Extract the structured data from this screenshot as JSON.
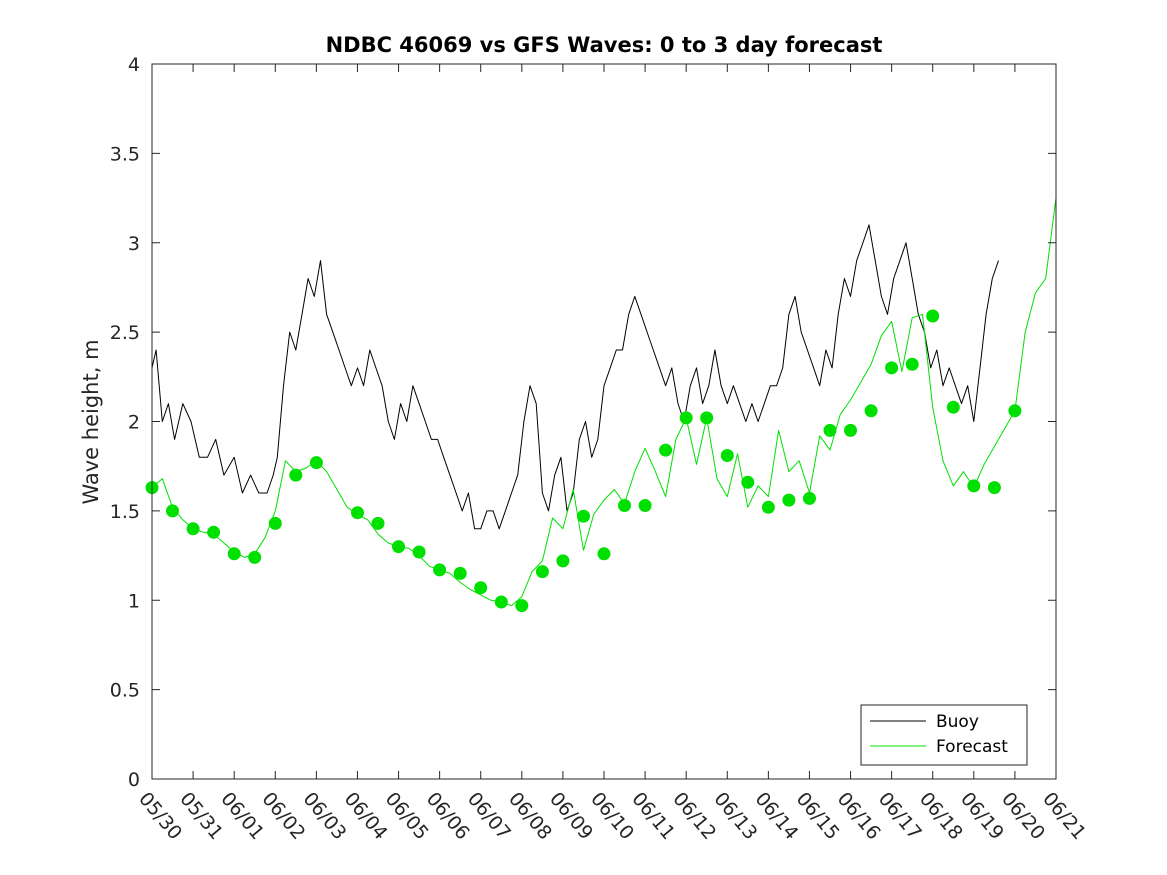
{
  "chart_data": {
    "type": "line",
    "title": "NDBC 46069 vs GFS Waves: 0 to 3 day forecast",
    "xlabel": "",
    "ylabel": "Wave height, m",
    "ylim": [
      0,
      4
    ],
    "yticks": [
      "0",
      "0.5",
      "1",
      "1.5",
      "2",
      "2.5",
      "3",
      "3.5",
      "4"
    ],
    "xlim": [
      0,
      22
    ],
    "xtick_labels": [
      "05/30",
      "05/31",
      "06/01",
      "06/02",
      "06/03",
      "06/04",
      "06/05",
      "06/06",
      "06/07",
      "06/08",
      "06/09",
      "06/10",
      "06/11",
      "06/12",
      "06/13",
      "06/14",
      "06/15",
      "06/16",
      "06/17",
      "06/18",
      "06/19",
      "06/20",
      "06/21"
    ],
    "grid": false,
    "legend_position": "bottom-right",
    "series": [
      {
        "name": "Buoy",
        "color": "#000000",
        "x": [
          0.0,
          0.1,
          0.25,
          0.4,
          0.55,
          0.75,
          0.95,
          1.15,
          1.35,
          1.55,
          1.75,
          2.0,
          2.2,
          2.4,
          2.6,
          2.8,
          2.95,
          3.05,
          3.2,
          3.35,
          3.5,
          3.65,
          3.8,
          3.95,
          4.1,
          4.25,
          4.4,
          4.55,
          4.7,
          4.85,
          5.0,
          5.15,
          5.3,
          5.45,
          5.6,
          5.75,
          5.9,
          6.05,
          6.2,
          6.35,
          6.5,
          6.65,
          6.8,
          6.95,
          7.1,
          7.25,
          7.4,
          7.55,
          7.7,
          7.85,
          8.0,
          8.15,
          8.3,
          8.45,
          8.6,
          8.75,
          8.9,
          9.05,
          9.2,
          9.35,
          9.5,
          9.65,
          9.8,
          9.95,
          10.1,
          10.25,
          10.4,
          10.55,
          10.7,
          10.85,
          11.0,
          11.15,
          11.3,
          11.45,
          11.6,
          11.75,
          11.9,
          12.05,
          12.2,
          12.35,
          12.5,
          12.65,
          12.8,
          12.95,
          13.1,
          13.25,
          13.4,
          13.55,
          13.7,
          13.85,
          14.0,
          14.15,
          14.3,
          14.45,
          14.6,
          14.75,
          14.9,
          15.05,
          15.2,
          15.35,
          15.5,
          15.65,
          15.8,
          15.95,
          16.1,
          16.25,
          16.4,
          16.55,
          16.7,
          16.85,
          17.0,
          17.15,
          17.3,
          17.45,
          17.6,
          17.75,
          17.9,
          18.05,
          18.2,
          18.35,
          18.5,
          18.65,
          18.8,
          18.95,
          19.1,
          19.25,
          19.4,
          19.55,
          19.7,
          19.85,
          20.0,
          20.15,
          20.3,
          20.45,
          20.6
        ],
        "y": [
          2.3,
          2.4,
          2.0,
          2.1,
          1.9,
          2.1,
          2.0,
          1.8,
          1.8,
          1.9,
          1.7,
          1.8,
          1.6,
          1.7,
          1.6,
          1.6,
          1.7,
          1.8,
          2.2,
          2.5,
          2.4,
          2.6,
          2.8,
          2.7,
          2.9,
          2.6,
          2.5,
          2.4,
          2.3,
          2.2,
          2.3,
          2.2,
          2.4,
          2.3,
          2.2,
          2.0,
          1.9,
          2.1,
          2.0,
          2.2,
          2.1,
          2.0,
          1.9,
          1.9,
          1.8,
          1.7,
          1.6,
          1.5,
          1.6,
          1.4,
          1.4,
          1.5,
          1.5,
          1.4,
          1.5,
          1.6,
          1.7,
          2.0,
          2.2,
          2.1,
          1.6,
          1.5,
          1.7,
          1.8,
          1.5,
          1.6,
          1.9,
          2.0,
          1.8,
          1.9,
          2.2,
          2.3,
          2.4,
          2.4,
          2.6,
          2.7,
          2.6,
          2.5,
          2.4,
          2.3,
          2.2,
          2.3,
          2.1,
          2.0,
          2.2,
          2.3,
          2.1,
          2.2,
          2.4,
          2.2,
          2.1,
          2.2,
          2.1,
          2.0,
          2.1,
          2.0,
          2.1,
          2.2,
          2.2,
          2.3,
          2.6,
          2.7,
          2.5,
          2.4,
          2.3,
          2.2,
          2.4,
          2.3,
          2.6,
          2.8,
          2.7,
          2.9,
          3.0,
          3.1,
          2.9,
          2.7,
          2.6,
          2.8,
          2.9,
          3.0,
          2.8,
          2.6,
          2.5,
          2.3,
          2.4,
          2.2,
          2.3,
          2.2,
          2.1,
          2.2,
          2.0,
          2.3,
          2.6,
          2.8,
          2.9
        ]
      },
      {
        "name": "Forecast",
        "color": "#00e000",
        "x": [
          0.0,
          0.25,
          0.5,
          0.75,
          1.0,
          1.25,
          1.5,
          1.75,
          2.0,
          2.25,
          2.5,
          2.75,
          3.0,
          3.25,
          3.5,
          3.75,
          4.0,
          4.25,
          4.5,
          4.75,
          5.0,
          5.25,
          5.5,
          5.75,
          6.0,
          6.25,
          6.5,
          6.75,
          7.0,
          7.25,
          7.5,
          7.75,
          8.0,
          8.25,
          8.5,
          8.75,
          9.0,
          9.25,
          9.5,
          9.75,
          10.0,
          10.25,
          10.5,
          10.75,
          11.0,
          11.25,
          11.5,
          11.75,
          12.0,
          12.25,
          12.5,
          12.75,
          13.0,
          13.25,
          13.5,
          13.75,
          14.0,
          14.25,
          14.5,
          14.75,
          15.0,
          15.25,
          15.5,
          15.75,
          16.0,
          16.25,
          16.5,
          16.75,
          17.0,
          17.25,
          17.5,
          17.75,
          18.0,
          18.25,
          18.5,
          18.75,
          19.0,
          19.25,
          19.5,
          19.75,
          20.0,
          20.25,
          20.5,
          20.75,
          21.0,
          21.25,
          21.5,
          21.75,
          22.0
        ],
        "y": [
          1.63,
          1.68,
          1.52,
          1.45,
          1.4,
          1.38,
          1.37,
          1.32,
          1.27,
          1.24,
          1.26,
          1.35,
          1.5,
          1.78,
          1.72,
          1.74,
          1.78,
          1.72,
          1.62,
          1.52,
          1.48,
          1.45,
          1.37,
          1.32,
          1.3,
          1.29,
          1.25,
          1.19,
          1.17,
          1.15,
          1.1,
          1.06,
          1.03,
          1.0,
          0.99,
          0.97,
          1.02,
          1.16,
          1.22,
          1.46,
          1.4,
          1.62,
          1.28,
          1.48,
          1.56,
          1.62,
          1.54,
          1.72,
          1.85,
          1.72,
          1.58,
          1.9,
          2.02,
          1.76,
          2.02,
          1.68,
          1.58,
          1.82,
          1.52,
          1.64,
          1.58,
          1.95,
          1.72,
          1.78,
          1.6,
          1.92,
          1.84,
          2.04,
          2.12,
          2.22,
          2.32,
          2.48,
          2.56,
          2.28,
          2.58,
          2.6,
          2.08,
          1.78,
          1.64,
          1.72,
          1.63,
          1.76,
          1.86,
          1.96,
          2.06,
          2.5,
          2.72,
          2.8,
          3.25
        ]
      }
    ],
    "markers": {
      "color": "#00e000",
      "x": [
        0.0,
        0.5,
        1.0,
        1.5,
        2.0,
        2.5,
        3.0,
        3.5,
        4.0,
        5.0,
        5.5,
        6.0,
        6.5,
        7.0,
        7.5,
        8.0,
        8.5,
        9.0,
        9.5,
        10.0,
        10.5,
        11.0,
        11.5,
        12.0,
        12.5,
        13.0,
        13.5,
        14.0,
        14.5,
        15.0,
        15.5,
        16.0,
        16.5,
        17.0,
        17.5,
        18.0,
        18.5,
        19.0,
        19.5,
        20.0,
        20.5,
        21.0
      ],
      "y": [
        1.63,
        1.5,
        1.4,
        1.38,
        1.26,
        1.24,
        1.43,
        1.7,
        1.77,
        1.49,
        1.43,
        1.3,
        1.27,
        1.17,
        1.15,
        1.07,
        0.99,
        0.97,
        1.16,
        1.22,
        1.47,
        1.26,
        1.53,
        1.53,
        1.84,
        2.02,
        2.02,
        1.81,
        1.66,
        1.52,
        1.56,
        1.57,
        1.95,
        1.95,
        2.06,
        2.3,
        2.32,
        2.59,
        2.08,
        1.64,
        1.63,
        2.06
      ]
    }
  }
}
